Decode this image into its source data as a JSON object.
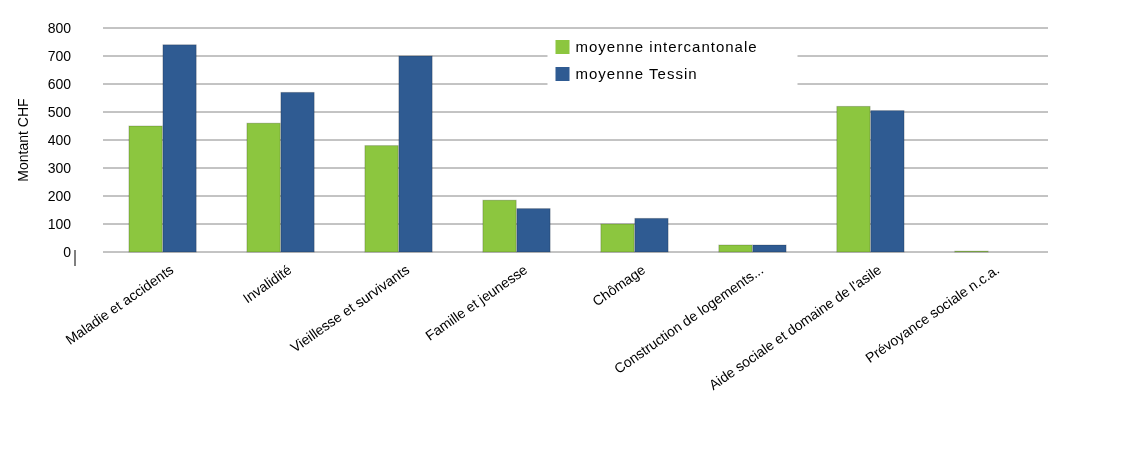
{
  "chart_data": {
    "type": "bar",
    "ylabel": "Montant CHF",
    "categories": [
      "Maladie et accidents",
      "Invalidité",
      "Vieillesse et survivants",
      "Famille et jeunesse",
      "Chômage",
      "Construction de logements...",
      "Aide sociale et domaine de l'asile",
      "Prévoyance sociale n.c.a."
    ],
    "series": [
      {
        "name": "moyenne intercantonale",
        "color": "#8cc63f",
        "values": [
          450,
          460,
          380,
          185,
          100,
          25,
          520,
          3
        ]
      },
      {
        "name": "moyenne Tessin",
        "color": "#2f5b92",
        "values": [
          740,
          570,
          700,
          155,
          120,
          25,
          505,
          0
        ]
      }
    ],
    "ylim": [
      0,
      800
    ],
    "yticks": [
      0,
      100,
      200,
      300,
      400,
      500,
      600,
      700,
      800
    ],
    "grid": "y",
    "legend": "top"
  }
}
